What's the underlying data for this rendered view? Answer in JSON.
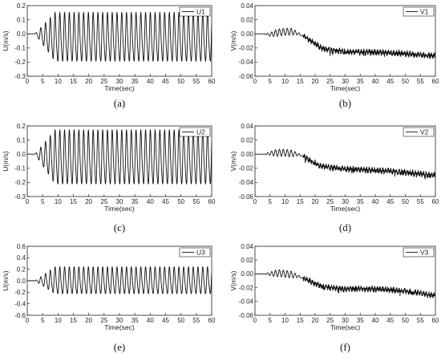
{
  "chart_data": [
    {
      "type": "line",
      "panel": "(a)",
      "xlabel": "Time(sec)",
      "ylabel": "U(m/s)",
      "xlim": [
        0,
        60
      ],
      "ylim": [
        -0.3,
        0.2
      ],
      "xticks": [
        "0",
        "5",
        "10",
        "15",
        "20",
        "25",
        "30",
        "35",
        "40",
        "45",
        "50",
        "55",
        "60"
      ],
      "yticks": [
        "-0.3",
        "-0.2",
        "-0.1",
        "0.0",
        "0.1",
        "0.2"
      ],
      "legend": "U1",
      "legend_position": "top-right",
      "grid": false,
      "series": [
        {
          "name": "U1",
          "signal": "oscillation",
          "period_sec": 1.55,
          "start_sec": 2.5,
          "steady_max": 0.15,
          "steady_min": -0.22
        }
      ]
    },
    {
      "type": "line",
      "panel": "(b)",
      "xlabel": "Time(sec)",
      "ylabel": "V(m/s)",
      "xlim": [
        0,
        60
      ],
      "ylim": [
        -0.06,
        0.04
      ],
      "xticks": [
        "0",
        "5",
        "10",
        "15",
        "20",
        "25",
        "30",
        "35",
        "40",
        "45",
        "50",
        "55",
        "60"
      ],
      "yticks": [
        "-0.06",
        "-0.04",
        "-0.02",
        "0.00",
        "0.02",
        "0.04"
      ],
      "legend": "V1",
      "legend_position": "top-right",
      "grid": false,
      "series": [
        {
          "name": "V1",
          "signal": "drift",
          "x": [
            0,
            3,
            5,
            8,
            10,
            12,
            14,
            16,
            18,
            20,
            22,
            25,
            30,
            35,
            40,
            45,
            50,
            55,
            60
          ],
          "y": [
            0.0,
            0.0,
            -0.001,
            0.002,
            0.003,
            0.003,
            0.001,
            -0.003,
            -0.008,
            -0.014,
            -0.02,
            -0.023,
            -0.025,
            -0.026,
            -0.026,
            -0.027,
            -0.028,
            -0.03,
            -0.031
          ]
        }
      ]
    },
    {
      "type": "line",
      "panel": "(c)",
      "xlabel": "Time(sec)",
      "ylabel": "U(m/s)",
      "xlim": [
        0,
        60
      ],
      "ylim": [
        -0.3,
        0.2
      ],
      "xticks": [
        "0",
        "5",
        "10",
        "15",
        "20",
        "25",
        "30",
        "35",
        "40",
        "45",
        "50",
        "55",
        "60"
      ],
      "yticks": [
        "-0.3",
        "-0.2",
        "-0.1",
        "0.0",
        "0.1",
        "0.2"
      ],
      "legend": "U2",
      "legend_position": "top-right",
      "grid": false,
      "series": [
        {
          "name": "U2",
          "signal": "oscillation",
          "period_sec": 1.55,
          "start_sec": 2.5,
          "steady_max": 0.17,
          "steady_min": -0.24
        }
      ]
    },
    {
      "type": "line",
      "panel": "(d)",
      "xlabel": "Time(sec)",
      "ylabel": "V(m/s)",
      "xlim": [
        0,
        60
      ],
      "ylim": [
        -0.06,
        0.04
      ],
      "xticks": [
        "0",
        "5",
        "10",
        "15",
        "20",
        "25",
        "30",
        "35",
        "40",
        "45",
        "50",
        "55",
        "60"
      ],
      "yticks": [
        "-0.06",
        "-0.04",
        "-0.02",
        "0.00",
        "0.02",
        "0.04"
      ],
      "legend": "V2",
      "legend_position": "top-right",
      "grid": false,
      "series": [
        {
          "name": "V2",
          "signal": "drift",
          "x": [
            0,
            3,
            5,
            8,
            10,
            12,
            14,
            16,
            18,
            20,
            22,
            25,
            30,
            35,
            40,
            45,
            50,
            55,
            60
          ],
          "y": [
            0.0,
            0.0,
            0.001,
            0.002,
            0.002,
            0.001,
            0.0,
            -0.003,
            -0.008,
            -0.013,
            -0.017,
            -0.019,
            -0.021,
            -0.022,
            -0.023,
            -0.024,
            -0.026,
            -0.028,
            -0.03
          ]
        }
      ]
    },
    {
      "type": "line",
      "panel": "(e)",
      "xlabel": "Time(sec)",
      "ylabel": "U(m/s)",
      "xlim": [
        0,
        60
      ],
      "ylim": [
        -0.6,
        0.6
      ],
      "xticks": [
        "0",
        "5",
        "10",
        "15",
        "20",
        "25",
        "30",
        "35",
        "40",
        "45",
        "50",
        "55",
        "60"
      ],
      "yticks": [
        "-0.6",
        "-0.4",
        "-0.2",
        "0.0",
        "0.2",
        "0.4",
        "0.6"
      ],
      "legend": "U3",
      "legend_position": "top-right",
      "grid": false,
      "series": [
        {
          "name": "U3",
          "signal": "oscillation",
          "period_sec": 1.55,
          "start_sec": 2.5,
          "steady_max": 0.24,
          "steady_min": -0.26
        }
      ]
    },
    {
      "type": "line",
      "panel": "(f)",
      "xlabel": "Time(sec)",
      "ylabel": "V(m/s)",
      "xlim": [
        0,
        60
      ],
      "ylim": [
        -0.06,
        0.04
      ],
      "xticks": [
        "0",
        "5",
        "10",
        "15",
        "20",
        "25",
        "30",
        "35",
        "40",
        "45",
        "50",
        "55",
        "60"
      ],
      "yticks": [
        "-0.06",
        "-0.04",
        "-0.02",
        "0.00",
        "0.02",
        "0.04"
      ],
      "legend": "V3",
      "legend_position": "top-right",
      "grid": false,
      "series": [
        {
          "name": "V3",
          "signal": "drift",
          "x": [
            0,
            3,
            5,
            8,
            10,
            12,
            14,
            16,
            18,
            20,
            22,
            25,
            30,
            35,
            40,
            45,
            50,
            55,
            60
          ],
          "y": [
            0.0,
            0.0,
            0.0,
            0.001,
            0.0,
            -0.001,
            -0.003,
            -0.006,
            -0.01,
            -0.014,
            -0.018,
            -0.02,
            -0.022,
            -0.021,
            -0.022,
            -0.023,
            -0.025,
            -0.028,
            -0.031
          ]
        }
      ]
    }
  ]
}
